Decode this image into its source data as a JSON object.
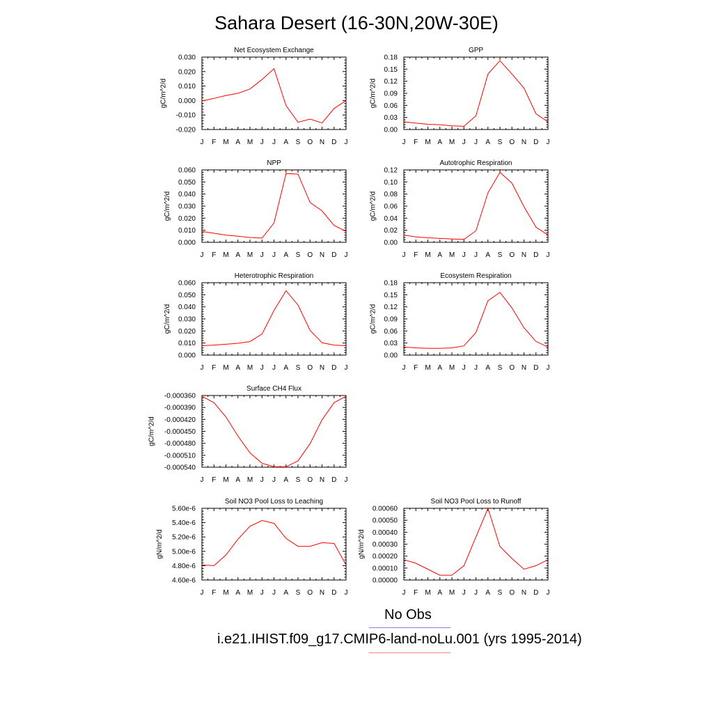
{
  "page": {
    "title": "Sahara Desert (16-30N,20W-30E)",
    "legend": [
      {
        "label": "No Obs",
        "color": "#8080ff"
      },
      {
        "label": "i.e21.IHIST.f09_g17.CMIP6-land-noLu.001 (yrs 1995-2014)",
        "color": "#ff8080"
      }
    ]
  },
  "chart_data": [
    {
      "type": "line",
      "title": "Net Ecosystem Exchange",
      "ylabel": "gC/m^2/d",
      "x": [
        "J",
        "F",
        "M",
        "A",
        "M",
        "J",
        "J",
        "A",
        "S",
        "O",
        "N",
        "D",
        "J"
      ],
      "ylim": [
        -0.02,
        0.03
      ],
      "yticks": [
        -0.02,
        -0.01,
        0.0,
        0.01,
        0.02,
        0.03
      ],
      "yticklabels": [
        "-0.020",
        "-0.010",
        "0.000",
        "0.010",
        "0.020",
        "0.030"
      ],
      "series": [
        {
          "color": "#ff0000",
          "values": [
            -0.0003,
            0.0015,
            0.0035,
            0.005,
            0.008,
            0.0145,
            0.022,
            -0.0035,
            -0.015,
            -0.0128,
            -0.0155,
            -0.0055,
            0.0
          ]
        }
      ]
    },
    {
      "type": "line",
      "title": "GPP",
      "ylabel": "gC/m^2/d",
      "x": [
        "J",
        "F",
        "M",
        "A",
        "M",
        "J",
        "J",
        "A",
        "S",
        "O",
        "N",
        "D",
        "J"
      ],
      "ylim": [
        0,
        0.18
      ],
      "yticks": [
        0,
        0.03,
        0.06,
        0.09,
        0.12,
        0.15,
        0.18
      ],
      "yticklabels": [
        "0.00",
        "0.03",
        "0.06",
        "0.09",
        "0.12",
        "0.15",
        "0.18"
      ],
      "series": [
        {
          "color": "#ff0000",
          "values": [
            0.019,
            0.016,
            0.013,
            0.012,
            0.009,
            0.008,
            0.034,
            0.138,
            0.171,
            0.138,
            0.103,
            0.039,
            0.019
          ]
        }
      ]
    },
    {
      "type": "line",
      "title": "NPP",
      "ylabel": "gC/m^2/d",
      "x": [
        "J",
        "F",
        "M",
        "A",
        "M",
        "J",
        "J",
        "A",
        "S",
        "O",
        "N",
        "D",
        "J"
      ],
      "ylim": [
        0,
        0.06
      ],
      "yticks": [
        0,
        0.01,
        0.02,
        0.03,
        0.04,
        0.05,
        0.06
      ],
      "yticklabels": [
        "0.000",
        "0.010",
        "0.020",
        "0.030",
        "0.040",
        "0.050",
        "0.060"
      ],
      "series": [
        {
          "color": "#ff0000",
          "values": [
            0.009,
            0.0075,
            0.006,
            0.005,
            0.004,
            0.0035,
            0.016,
            0.057,
            0.0565,
            0.033,
            0.026,
            0.014,
            0.009
          ]
        }
      ]
    },
    {
      "type": "line",
      "title": "Autotrophic Respiration",
      "ylabel": "gC/m^2/d",
      "x": [
        "J",
        "F",
        "M",
        "A",
        "M",
        "J",
        "J",
        "A",
        "S",
        "O",
        "N",
        "D",
        "J"
      ],
      "ylim": [
        0,
        0.12
      ],
      "yticks": [
        0,
        0.02,
        0.04,
        0.06,
        0.08,
        0.1,
        0.12
      ],
      "yticklabels": [
        "0.00",
        "0.02",
        "0.04",
        "0.06",
        "0.08",
        "0.10",
        "0.12"
      ],
      "series": [
        {
          "color": "#ff0000",
          "values": [
            0.012,
            0.009,
            0.0075,
            0.0065,
            0.0055,
            0.0048,
            0.019,
            0.082,
            0.116,
            0.098,
            0.059,
            0.025,
            0.012
          ]
        }
      ]
    },
    {
      "type": "line",
      "title": "Heterotrophic Respiration",
      "ylabel": "gC/m^2/d",
      "x": [
        "J",
        "F",
        "M",
        "A",
        "M",
        "J",
        "J",
        "A",
        "S",
        "O",
        "N",
        "D",
        "J"
      ],
      "ylim": [
        0,
        0.06
      ],
      "yticks": [
        0,
        0.01,
        0.02,
        0.03,
        0.04,
        0.05,
        0.06
      ],
      "yticklabels": [
        "0.000",
        "0.010",
        "0.020",
        "0.030",
        "0.040",
        "0.050",
        "0.060"
      ],
      "series": [
        {
          "color": "#ff0000",
          "values": [
            0.0078,
            0.0083,
            0.009,
            0.0098,
            0.0112,
            0.0175,
            0.037,
            0.0533,
            0.0415,
            0.0205,
            0.0102,
            0.0083,
            0.0078
          ]
        }
      ]
    },
    {
      "type": "line",
      "title": "Ecosystem Respiration",
      "ylabel": "gC/m^2/d",
      "x": [
        "J",
        "F",
        "M",
        "A",
        "M",
        "J",
        "J",
        "A",
        "S",
        "O",
        "N",
        "D",
        "J"
      ],
      "ylim": [
        0,
        0.18
      ],
      "yticks": [
        0,
        0.03,
        0.06,
        0.09,
        0.12,
        0.15,
        0.18
      ],
      "yticklabels": [
        "0.00",
        "0.03",
        "0.06",
        "0.09",
        "0.12",
        "0.15",
        "0.18"
      ],
      "series": [
        {
          "color": "#ff0000",
          "values": [
            0.02,
            0.018,
            0.017,
            0.017,
            0.018,
            0.023,
            0.056,
            0.135,
            0.156,
            0.117,
            0.068,
            0.034,
            0.02
          ]
        }
      ]
    },
    {
      "type": "line",
      "title": "Surface CH4 Flux",
      "ylabel": "gC/m^2/d",
      "x": [
        "J",
        "F",
        "M",
        "A",
        "M",
        "J",
        "J",
        "A",
        "S",
        "O",
        "N",
        "D",
        "J"
      ],
      "ylim": [
        -0.00054,
        -0.00036
      ],
      "yticks": [
        -0.00054,
        -0.00051,
        -0.00048,
        -0.00045,
        -0.00042,
        -0.00039,
        -0.00036
      ],
      "yticklabels": [
        "-0.000540",
        "-0.000510",
        "-0.000480",
        "-0.000450",
        "-0.000420",
        "-0.000390",
        "-0.000360"
      ],
      "series": [
        {
          "color": "#ff0000",
          "values": [
            -0.000362,
            -0.000378,
            -0.000414,
            -0.000462,
            -0.000504,
            -0.00053,
            -0.000539,
            -0.000539,
            -0.000524,
            -0.000481,
            -0.000421,
            -0.000378,
            -0.000362
          ]
        }
      ]
    },
    null,
    {
      "type": "line",
      "title": "Soil NO3 Pool Loss to Leaching",
      "ylabel": "gN/m^2/d",
      "x": [
        "J",
        "F",
        "M",
        "A",
        "M",
        "J",
        "J",
        "A",
        "S",
        "O",
        "N",
        "D",
        "J"
      ],
      "ylim": [
        4.6e-06,
        5.6e-06
      ],
      "yticks": [
        4.6e-06,
        4.8e-06,
        5e-06,
        5.2e-06,
        5.4e-06,
        5.6e-06
      ],
      "yticklabels": [
        "4.60e-6",
        "4.80e-6",
        "5.00e-6",
        "5.20e-6",
        "5.40e-6",
        "5.60e-6"
      ],
      "series": [
        {
          "color": "#ff0000",
          "values": [
            4.81e-06,
            4.8e-06,
            4.95e-06,
            5.17e-06,
            5.35e-06,
            5.43e-06,
            5.39e-06,
            5.18e-06,
            5.07e-06,
            5.07e-06,
            5.12e-06,
            5.11e-06,
            4.81e-06
          ]
        }
      ]
    },
    {
      "type": "line",
      "title": "Soil NO3 Pool Loss to Runoff",
      "ylabel": "gN/m^2/d",
      "x": [
        "J",
        "F",
        "M",
        "A",
        "M",
        "J",
        "J",
        "A",
        "S",
        "O",
        "N",
        "D",
        "J"
      ],
      "ylim": [
        0,
        0.0006
      ],
      "yticks": [
        0,
        0.0001,
        0.0002,
        0.0003,
        0.0004,
        0.0005,
        0.0006
      ],
      "yticklabels": [
        "0.00000",
        "0.00010",
        "0.00020",
        "0.00030",
        "0.00040",
        "0.00050",
        "0.00060"
      ],
      "series": [
        {
          "color": "#ff0000",
          "values": [
            0.00017,
            0.00014,
            9e-05,
            4e-05,
            4e-05,
            0.00012,
            0.00036,
            0.0006,
            0.00028,
            0.00018,
            9e-05,
            0.00012,
            0.00017
          ]
        }
      ]
    }
  ]
}
